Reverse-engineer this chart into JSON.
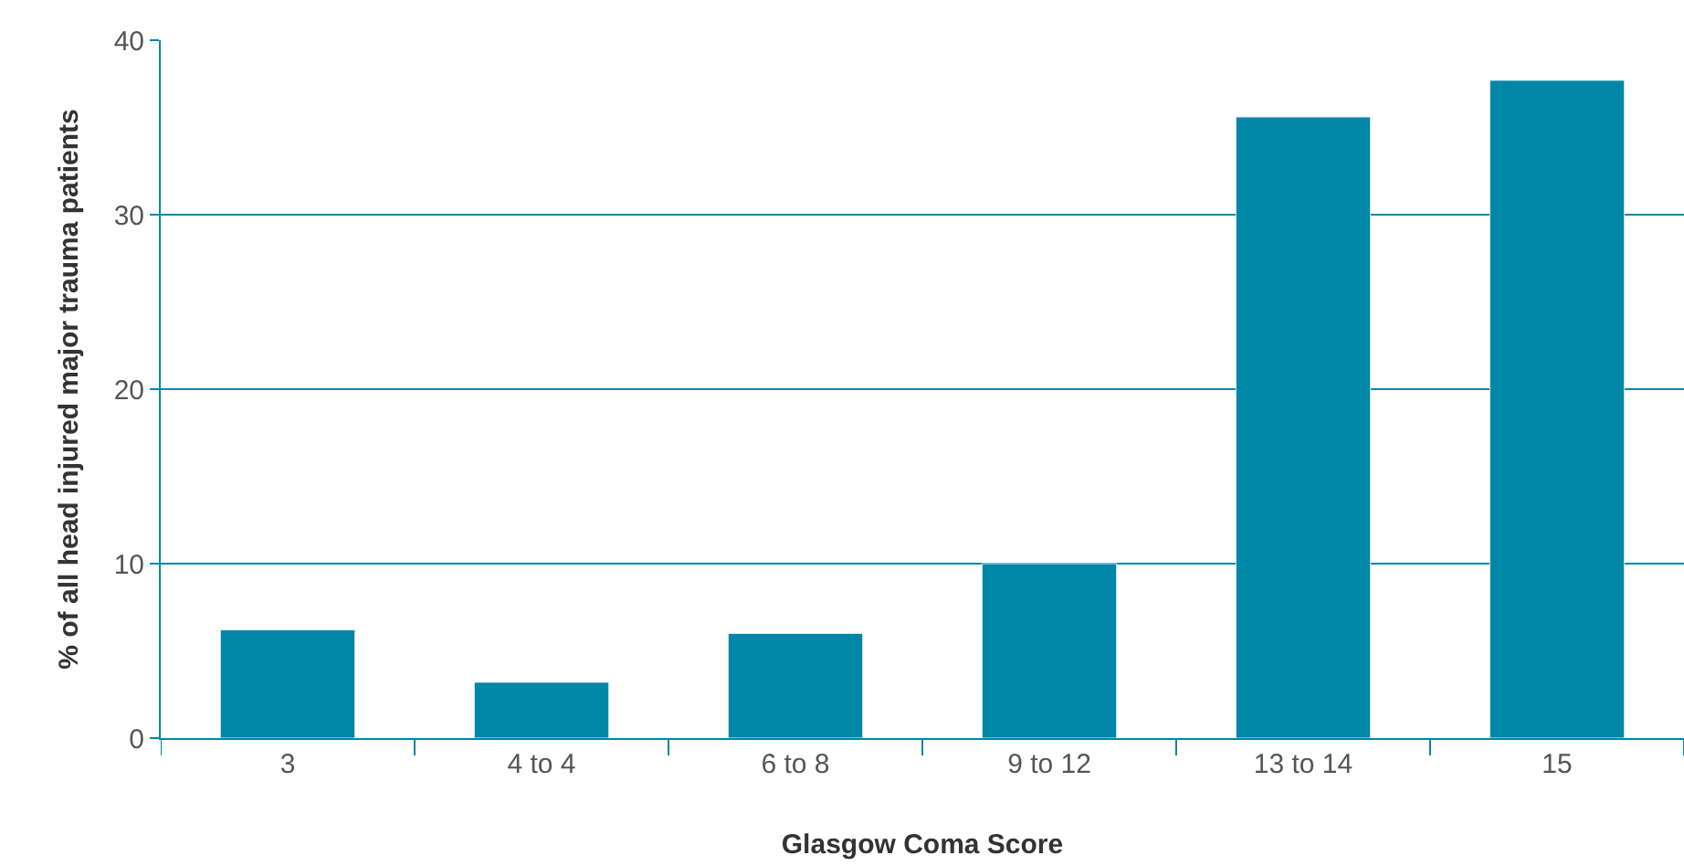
{
  "chart_data": {
    "type": "bar",
    "xlabel": "Glasgow Coma Score",
    "ylabel": "% of all head injured major trauma patients",
    "categories": [
      "3",
      "4 to 4",
      "6 to 8",
      "9 to 12",
      "13 to 14",
      "15"
    ],
    "values": [
      6.2,
      3.2,
      6.0,
      10.0,
      35.6,
      37.7
    ],
    "color": "#0087a8",
    "ylim": [
      0,
      40
    ],
    "yticks": [
      0,
      10,
      20,
      30,
      40
    ],
    "grid": "y",
    "legend": false
  }
}
